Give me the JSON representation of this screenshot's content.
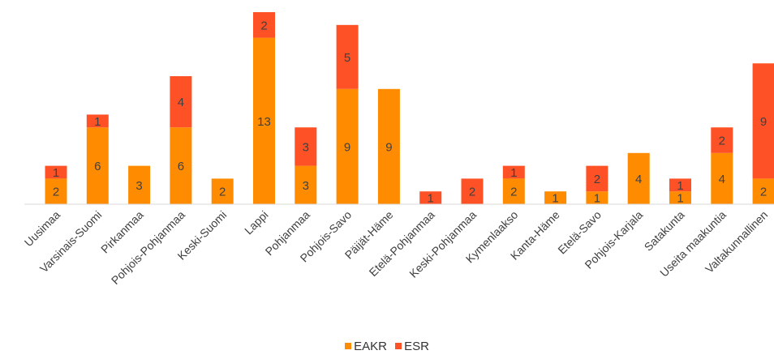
{
  "chart_data": {
    "type": "bar",
    "stacked": true,
    "categories": [
      "Uusimaa",
      "Varsinais-Suomi",
      "Pirkanmaa",
      "Pohjois-Pohjanmaa",
      "Keski-Suomi",
      "Lappi",
      "Pohjanmaa",
      "Pohjois-Savo",
      "Päijät-Häme",
      "Etelä-Pohjanmaa",
      "Keski-Pohjanmaa",
      "Kymenlaakso",
      "Kanta-Häme",
      "Etelä-Savo",
      "Pohjois-Karjala",
      "Satakunta",
      "Useita maakuntia",
      "Valtakunnallinen"
    ],
    "series": [
      {
        "name": "EAKR",
        "color": "#FF8C00",
        "values": [
          2,
          6,
          3,
          6,
          2,
          13,
          3,
          9,
          9,
          0,
          0,
          2,
          1,
          1,
          4,
          1,
          4,
          2
        ]
      },
      {
        "name": "ESR",
        "color": "#FF5126",
        "values": [
          1,
          1,
          0,
          4,
          0,
          2,
          3,
          5,
          0,
          1,
          2,
          1,
          0,
          2,
          0,
          1,
          2,
          9
        ]
      }
    ],
    "ylim": [
      0,
      15
    ],
    "title": "",
    "xlabel": "",
    "ylabel": "",
    "grid": false,
    "legend": "bottom"
  }
}
